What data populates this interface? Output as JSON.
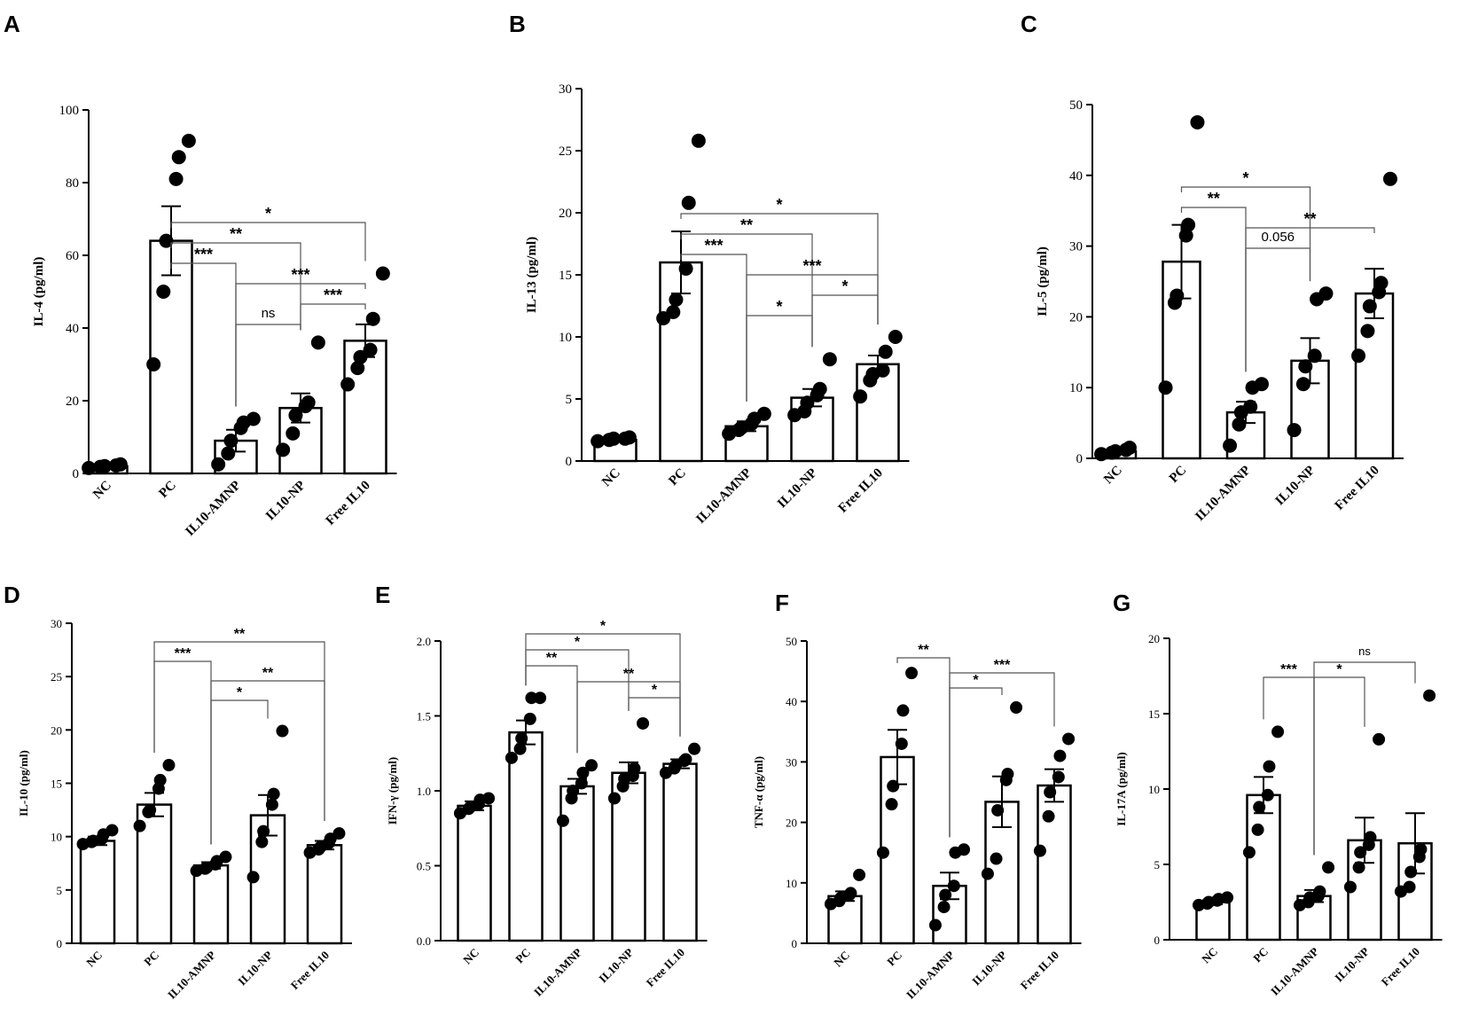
{
  "chart_data": [
    {
      "panel": "A",
      "type": "bar",
      "ylabel": "IL-4 (pg/ml)",
      "ylim": [
        0,
        100
      ],
      "yticks": [
        0,
        20,
        40,
        60,
        80,
        100
      ],
      "categories": [
        "NC",
        "PC",
        "IL10-AMNP",
        "IL10-NP",
        "Free IL10"
      ],
      "values": [
        2.0,
        64.0,
        9.0,
        18.0,
        36.5
      ],
      "errors": [
        0.5,
        9.5,
        3.0,
        4.0,
        4.5
      ],
      "points": [
        [
          1.5,
          1.8,
          2.0,
          2.2,
          2.5
        ],
        [
          30,
          50,
          64,
          81,
          87,
          91.5
        ],
        [
          2.5,
          5.5,
          9,
          12.5,
          14,
          15
        ],
        [
          6.5,
          11,
          16,
          18.5,
          19.5,
          36
        ],
        [
          24.5,
          29,
          32,
          34,
          42.5,
          55
        ]
      ],
      "comparisons": [
        {
          "from": 1,
          "to": 4,
          "label": "*",
          "level": 3
        },
        {
          "from": 1,
          "to": 3,
          "label": "**",
          "level": 2
        },
        {
          "from": 1,
          "to": 2,
          "label": "***",
          "level": 1
        },
        {
          "from": 2,
          "to": 4,
          "label": "***",
          "level": 0
        },
        {
          "from": 3,
          "to": 4,
          "label": "***",
          "level": -1
        },
        {
          "from": 2,
          "to": 3,
          "label": "ns",
          "level": -2
        }
      ]
    },
    {
      "panel": "B",
      "type": "bar",
      "ylabel": "IL-13 (pg/ml)",
      "ylim": [
        0,
        30
      ],
      "yticks": [
        0,
        5,
        10,
        15,
        20,
        25,
        30
      ],
      "categories": [
        "NC",
        "PC",
        "IL10-AMNP",
        "IL10-NP",
        "Free IL10"
      ],
      "values": [
        1.7,
        16.0,
        2.8,
        5.1,
        7.8
      ],
      "errors": [
        0.1,
        2.5,
        0.4,
        0.7,
        0.7
      ],
      "points": [
        [
          1.6,
          1.7,
          1.8,
          1.8,
          1.9
        ],
        [
          11.5,
          12.0,
          13.0,
          15.5,
          20.8,
          25.8
        ],
        [
          2.2,
          2.5,
          2.7,
          3.0,
          3.4,
          3.8
        ],
        [
          3.7,
          4.0,
          4.7,
          5.3,
          5.8,
          8.2
        ],
        [
          5.2,
          6.5,
          7.0,
          7.3,
          8.8,
          10.0
        ]
      ],
      "comparisons": [
        {
          "from": 1,
          "to": 4,
          "label": "*",
          "level": 3
        },
        {
          "from": 1,
          "to": 3,
          "label": "**",
          "level": 2
        },
        {
          "from": 1,
          "to": 2,
          "label": "***",
          "level": 1
        },
        {
          "from": 2,
          "to": 4,
          "label": "***",
          "level": 0
        },
        {
          "from": 3,
          "to": 4,
          "label": "*",
          "level": -1
        },
        {
          "from": 2,
          "to": 3,
          "label": "*",
          "level": -2
        }
      ]
    },
    {
      "panel": "C",
      "type": "bar",
      "ylabel": "IL-5 (pg/ml)",
      "ylim": [
        0,
        50
      ],
      "yticks": [
        0,
        10,
        20,
        30,
        40,
        50
      ],
      "categories": [
        "NC",
        "PC",
        "IL10-AMNP",
        "IL10-NP",
        "Free IL10"
      ],
      "values": [
        1.0,
        27.8,
        6.5,
        13.8,
        23.3
      ],
      "errors": [
        0.3,
        5.2,
        1.5,
        3.2,
        3.5
      ],
      "points": [
        [
          0.6,
          0.8,
          1.0,
          1.2,
          1.5
        ],
        [
          10.0,
          22.0,
          23.0,
          31.5,
          33.0,
          47.5
        ],
        [
          1.8,
          4.8,
          6.5,
          7.3,
          10.0,
          10.5
        ],
        [
          4.0,
          10.5,
          13.0,
          14.5,
          22.5,
          23.3
        ],
        [
          14.5,
          18.0,
          21.5,
          23.5,
          24.8,
          39.5
        ]
      ],
      "comparisons": [
        {
          "from": 1,
          "to": 3,
          "label": "*",
          "level": 3
        },
        {
          "from": 1,
          "to": 2,
          "label": "**",
          "level": 2
        },
        {
          "from": 2,
          "to": 4,
          "label": "**",
          "level": 1
        },
        {
          "from": 2,
          "to": 3,
          "label": "0.056",
          "level": 0
        }
      ]
    },
    {
      "panel": "D",
      "type": "bar",
      "ylabel": "IL-10 (pg/ml)",
      "ylim": [
        0,
        30
      ],
      "yticks": [
        0,
        5,
        10,
        15,
        20,
        25,
        30
      ],
      "categories": [
        "NC",
        "PC",
        "IL10-AMNP",
        "IL10-NP",
        "Free IL10"
      ],
      "values": [
        9.6,
        13.0,
        7.3,
        12.0,
        9.2
      ],
      "errors": [
        0.4,
        1.1,
        0.3,
        1.9,
        0.4
      ],
      "points": [
        [
          9.3,
          9.5,
          9.6,
          9.8,
          10.2,
          10.6
        ],
        [
          11.0,
          12.3,
          12.5,
          14.5,
          15.3,
          16.7
        ],
        [
          6.8,
          7.0,
          7.1,
          7.4,
          7.7,
          8.1
        ],
        [
          6.2,
          9.5,
          10.5,
          13.0,
          14.0,
          19.9
        ],
        [
          8.5,
          8.8,
          9.0,
          9.4,
          9.8,
          10.3
        ]
      ],
      "comparisons": [
        {
          "from": 1,
          "to": 4,
          "label": "**",
          "level": 3
        },
        {
          "from": 1,
          "to": 2,
          "label": "***",
          "level": 2
        },
        {
          "from": 2,
          "to": 4,
          "label": "**",
          "level": 1
        },
        {
          "from": 2,
          "to": 3,
          "label": "*",
          "level": 0
        }
      ]
    },
    {
      "panel": "E",
      "type": "bar",
      "ylabel": "IFN-γ (pg/ml)",
      "ylim": [
        0,
        2.0
      ],
      "yticks": [
        0.0,
        0.5,
        1.0,
        1.5,
        2.0
      ],
      "tick_format": "1",
      "categories": [
        "NC",
        "PC",
        "IL10-AMNP",
        "IL10-NP",
        "Free IL10"
      ],
      "values": [
        0.9,
        1.39,
        1.03,
        1.12,
        1.18
      ],
      "errors": [
        0.03,
        0.08,
        0.05,
        0.07,
        0.03
      ],
      "points": [
        [
          0.85,
          0.88,
          0.89,
          0.91,
          0.94,
          0.95
        ],
        [
          1.22,
          1.28,
          1.35,
          1.48,
          1.62,
          1.62
        ],
        [
          0.8,
          0.95,
          1.0,
          1.05,
          1.12,
          1.17
        ],
        [
          0.95,
          1.03,
          1.08,
          1.1,
          1.15,
          1.45
        ],
        [
          1.12,
          1.15,
          1.17,
          1.2,
          1.21,
          1.28
        ]
      ],
      "comparisons": [
        {
          "from": 1,
          "to": 4,
          "label": "*",
          "level": 4
        },
        {
          "from": 1,
          "to": 3,
          "label": "*",
          "level": 3
        },
        {
          "from": 1,
          "to": 2,
          "label": "**",
          "level": 2
        },
        {
          "from": 2,
          "to": 4,
          "label": "**",
          "level": 1
        },
        {
          "from": 3,
          "to": 4,
          "label": "*",
          "level": 0
        }
      ]
    },
    {
      "panel": "F",
      "type": "bar",
      "ylabel": "TNF-α (pg/ml)",
      "ylim": [
        0,
        50
      ],
      "yticks": [
        0,
        10,
        20,
        30,
        40,
        50
      ],
      "categories": [
        "NC",
        "PC",
        "IL10-AMNP",
        "IL10-NP",
        "Free IL10"
      ],
      "values": [
        7.8,
        30.8,
        9.5,
        23.4,
        26.1
      ],
      "errors": [
        0.8,
        4.5,
        2.2,
        4.2,
        2.7
      ],
      "points": [
        [
          6.5,
          7.0,
          7.5,
          8.0,
          8.3,
          11.3
        ],
        [
          15.0,
          23.0,
          26.0,
          33.0,
          38.5,
          44.7
        ],
        [
          3.0,
          6.0,
          8.0,
          9.5,
          15.0,
          15.5
        ],
        [
          11.5,
          14.0,
          22.0,
          27.0,
          28.0,
          39.0
        ],
        [
          15.3,
          21.0,
          25.0,
          27.5,
          31.0,
          33.8
        ]
      ],
      "comparisons": [
        {
          "from": 1,
          "to": 2,
          "label": "**",
          "level": 2
        },
        {
          "from": 2,
          "to": 4,
          "label": "***",
          "level": 1
        },
        {
          "from": 2,
          "to": 3,
          "label": "*",
          "level": 0
        }
      ]
    },
    {
      "panel": "G",
      "type": "bar",
      "ylabel": "IL-17A (pg/ml)",
      "ylim": [
        0,
        20
      ],
      "yticks": [
        0,
        5,
        10,
        15,
        20
      ],
      "categories": [
        "NC",
        "PC",
        "IL10-AMNP",
        "IL10-NP",
        "Free IL10"
      ],
      "values": [
        2.5,
        9.6,
        2.9,
        6.6,
        6.4
      ],
      "errors": [
        0.15,
        1.2,
        0.4,
        1.5,
        2.0
      ],
      "points": [
        [
          2.3,
          2.4,
          2.5,
          2.6,
          2.7,
          2.8
        ],
        [
          5.8,
          7.3,
          8.8,
          9.6,
          11.5,
          13.8
        ],
        [
          2.3,
          2.5,
          2.8,
          2.9,
          3.2,
          4.8
        ],
        [
          3.5,
          4.8,
          5.8,
          6.3,
          6.8,
          13.3
        ],
        [
          3.2,
          3.5,
          4.5,
          5.5,
          6.0,
          16.2
        ]
      ],
      "comparisons": [
        {
          "from": 2,
          "to": 4,
          "label": "ns",
          "level": 2
        },
        {
          "from": 1,
          "to": 2,
          "label": "***",
          "level": 1
        },
        {
          "from": 2,
          "to": 3,
          "label": "*",
          "level": 1
        }
      ]
    }
  ]
}
